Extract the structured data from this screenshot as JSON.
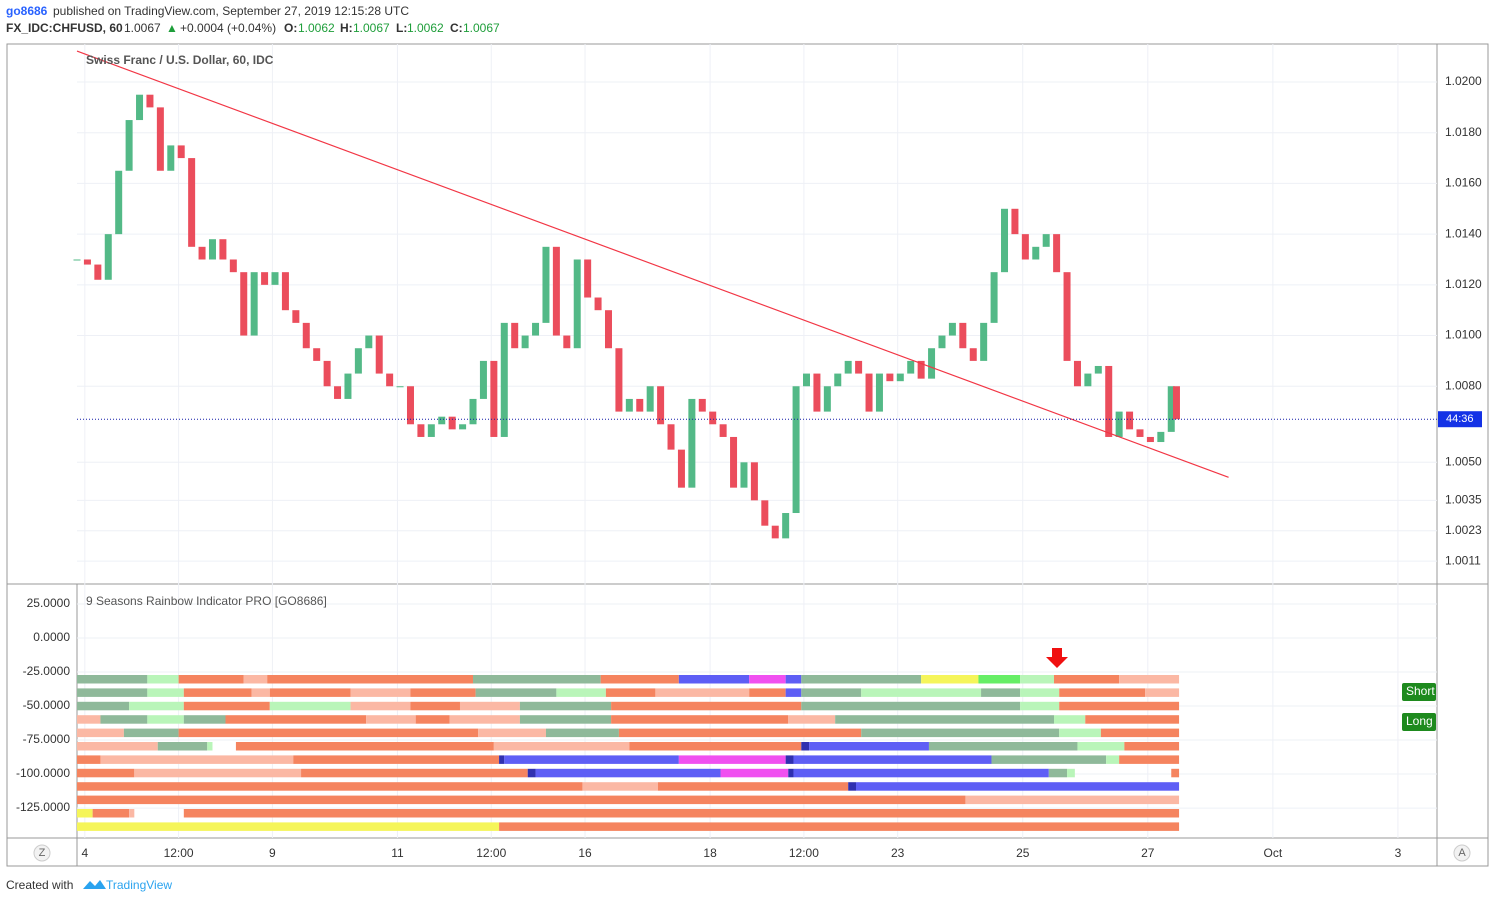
{
  "header": {
    "author": "go8686",
    "published": "published on TradingView.com, September 27, 2019 12:15:28 UTC",
    "symbol": "FX_IDC:CHFUSD, 60",
    "last": "1.0067",
    "change": "+0.0004 (+0.04%)",
    "o_label": "O:",
    "o": "1.0062",
    "h_label": "H:",
    "h": "1.0067",
    "l_label": "L:",
    "l": "1.0062",
    "c_label": "C:",
    "c": "1.0067"
  },
  "countdown": "44:36",
  "scale_buttons": [
    "Z",
    "A"
  ],
  "footer": {
    "created": "Created with",
    "brand": "TradingView"
  },
  "chart_data": [
    {
      "type": "candlestick",
      "title": "Swiss Franc / U.S. Dollar, 60, IDC",
      "up_color": "#53b987",
      "down_color": "#eb4d5c",
      "grid": true,
      "xlim": [
        -3,
        519
      ],
      "xticks": [
        {
          "value": 0,
          "label": "4"
        },
        {
          "value": 36,
          "label": "12:00"
        },
        {
          "value": 72,
          "label": "9"
        },
        {
          "value": 120,
          "label": "11"
        },
        {
          "value": 156,
          "label": "12:00"
        },
        {
          "value": 192,
          "label": "16"
        },
        {
          "value": 240,
          "label": "18"
        },
        {
          "value": 276,
          "label": "12:00"
        },
        {
          "value": 312,
          "label": "23"
        },
        {
          "value": 360,
          "label": "25"
        },
        {
          "value": 408,
          "label": "27"
        },
        {
          "value": 456,
          "label": "Oct"
        },
        {
          "value": 504,
          "label": "3"
        }
      ],
      "ylim": [
        1.0002,
        1.0215
      ],
      "yticks": [
        {
          "value": 1.02,
          "label": "1.0200"
        },
        {
          "value": 1.018,
          "label": "1.0180"
        },
        {
          "value": 1.016,
          "label": "1.0160"
        },
        {
          "value": 1.014,
          "label": "1.0140"
        },
        {
          "value": 1.012,
          "label": "1.0120"
        },
        {
          "value": 1.01,
          "label": "1.0100"
        },
        {
          "value": 1.008,
          "label": "1.0080"
        },
        {
          "value": 1.005,
          "label": "1.0050"
        },
        {
          "value": 1.0035,
          "label": "1.0035"
        },
        {
          "value": 1.0023,
          "label": "1.0023"
        },
        {
          "value": 1.0011,
          "label": "1.0011"
        }
      ],
      "x": [
        -3,
        1,
        5,
        9,
        13,
        17,
        21,
        25,
        29,
        33,
        37,
        41,
        45,
        49,
        53,
        57,
        61,
        65,
        69,
        73,
        77,
        81,
        85,
        89,
        93,
        97,
        101,
        105,
        109,
        113,
        117,
        121,
        125,
        129,
        133,
        137,
        141,
        145,
        149,
        153,
        157,
        161,
        165,
        169,
        173,
        177,
        181,
        185,
        189,
        193,
        197,
        201,
        205,
        209,
        213,
        217,
        221,
        225,
        229,
        233,
        237,
        241,
        245,
        249,
        253,
        257,
        261,
        265,
        269,
        273,
        277,
        281,
        285,
        289,
        293,
        297,
        301,
        305,
        309,
        313,
        317,
        321,
        325,
        329,
        333,
        337,
        341,
        345,
        349,
        353,
        357,
        361,
        365,
        369,
        373,
        377,
        381,
        385,
        389,
        393,
        397,
        401,
        405,
        409,
        413,
        417,
        419
      ],
      "close": [
        1.013,
        1.0128,
        1.0122,
        1.014,
        1.0165,
        1.0185,
        1.0195,
        1.019,
        1.0165,
        1.0175,
        1.017,
        1.0135,
        1.013,
        1.0138,
        1.013,
        1.0125,
        1.01,
        1.0125,
        1.012,
        1.0125,
        1.011,
        1.0105,
        1.0095,
        1.009,
        1.008,
        1.0075,
        1.0085,
        1.0095,
        1.01,
        1.0085,
        1.008,
        1.008,
        1.0065,
        1.006,
        1.0065,
        1.0068,
        1.0063,
        1.0065,
        1.0075,
        1.009,
        1.006,
        1.0105,
        1.0095,
        1.01,
        1.0105,
        1.0135,
        1.01,
        1.0095,
        1.013,
        1.0115,
        1.011,
        1.0095,
        1.007,
        1.0075,
        1.007,
        1.008,
        1.0065,
        1.0055,
        1.004,
        1.0075,
        1.007,
        1.0065,
        1.006,
        1.004,
        1.005,
        1.0035,
        1.0025,
        1.002,
        1.003,
        1.008,
        1.0085,
        1.007,
        1.008,
        1.0085,
        1.009,
        1.0085,
        1.007,
        1.0085,
        1.0082,
        1.0085,
        1.009,
        1.0083,
        1.0095,
        1.01,
        1.0105,
        1.0095,
        1.009,
        1.0105,
        1.0125,
        1.015,
        1.014,
        1.013,
        1.0135,
        1.014,
        1.0125,
        1.009,
        1.008,
        1.0085,
        1.0088,
        1.006,
        1.007,
        1.0063,
        1.006,
        1.0058,
        1.0062,
        1.008,
        1.0067
      ],
      "trendline": {
        "x": [
          -3,
          439
        ],
        "y": [
          1.02122,
          1.00441
        ],
        "color": "#f23645"
      },
      "last_line_color": "#131ca8"
    },
    {
      "type": "rainbow",
      "title": "9 Seasons Rainbow Indicator PRO [GO8686]",
      "ylim": [
        -147,
        39.7
      ],
      "yticks": [
        {
          "value": 25,
          "label": "25.0000"
        },
        {
          "value": 0,
          "label": "0.0000"
        },
        {
          "value": -25,
          "label": "-25.0000"
        },
        {
          "value": -50,
          "label": "-50.0000"
        },
        {
          "value": -75,
          "label": "-75.0000"
        },
        {
          "value": -100,
          "label": "-100.0000"
        },
        {
          "value": -125,
          "label": "-125.0000"
        }
      ],
      "signals": [
        "Short",
        "Long"
      ],
      "signal_color": "#1e8a1e",
      "rows": [
        [
          [
            -3,
            24,
            "#8fb99a"
          ],
          [
            24,
            36,
            "#b9f5b9"
          ],
          [
            36,
            61,
            "#f5845f"
          ],
          [
            61,
            70,
            "#fbb8a4"
          ],
          [
            70,
            149,
            "#f5845f"
          ],
          [
            149,
            198,
            "#8fb99a"
          ],
          [
            198,
            228,
            "#f5845f"
          ],
          [
            228,
            255,
            "#5e5ef5"
          ],
          [
            255,
            269,
            "#f050f0"
          ],
          [
            269,
            275,
            "#5e5ef5"
          ],
          [
            275,
            321,
            "#8fb99a"
          ],
          [
            321,
            343,
            "#f5f55a"
          ],
          [
            343,
            359,
            "#66ee66"
          ],
          [
            359,
            372,
            "#b9f5b9"
          ],
          [
            372,
            397,
            "#f5845f"
          ],
          [
            397,
            420,
            "#fbb8a4"
          ]
        ],
        [
          [
            -3,
            24,
            "#8fb99a"
          ],
          [
            24,
            38,
            "#b9f5b9"
          ],
          [
            38,
            64,
            "#f5845f"
          ],
          [
            64,
            71,
            "#fbb8a4"
          ],
          [
            71,
            102,
            "#f5845f"
          ],
          [
            102,
            125,
            "#fbb8a4"
          ],
          [
            125,
            150,
            "#f5845f"
          ],
          [
            150,
            181,
            "#8fb99a"
          ],
          [
            181,
            200,
            "#b9f5b9"
          ],
          [
            200,
            219,
            "#f5845f"
          ],
          [
            219,
            255,
            "#fbb8a4"
          ],
          [
            255,
            269,
            "#f5845f"
          ],
          [
            269,
            275,
            "#5e5ef5"
          ],
          [
            275,
            298,
            "#8fb99a"
          ],
          [
            298,
            344,
            "#b9f5b9"
          ],
          [
            344,
            359,
            "#8fb99a"
          ],
          [
            359,
            374,
            "#b9f5b9"
          ],
          [
            374,
            407,
            "#f5845f"
          ],
          [
            407,
            420,
            "#fbb8a4"
          ]
        ],
        [
          [
            -3,
            17,
            "#8fb99a"
          ],
          [
            17,
            38,
            "#b9f5b9"
          ],
          [
            38,
            71,
            "#f5845f"
          ],
          [
            71,
            102,
            "#b9f5b9"
          ],
          [
            102,
            125,
            "#fbb8a4"
          ],
          [
            125,
            144,
            "#f5845f"
          ],
          [
            144,
            167,
            "#fbb8a4"
          ],
          [
            167,
            202,
            "#8fb99a"
          ],
          [
            202,
            275,
            "#f5845f"
          ],
          [
            275,
            359,
            "#8fb99a"
          ],
          [
            359,
            374,
            "#b9f5b9"
          ],
          [
            374,
            420,
            "#f5845f"
          ]
        ],
        [
          [
            -3,
            6,
            "#fbb8a4"
          ],
          [
            6,
            24,
            "#8fb99a"
          ],
          [
            24,
            38,
            "#b9f5b9"
          ],
          [
            38,
            54,
            "#8fb99a"
          ],
          [
            54,
            108,
            "#f5845f"
          ],
          [
            108,
            127,
            "#fbb8a4"
          ],
          [
            127,
            140,
            "#f5845f"
          ],
          [
            140,
            167,
            "#fbb8a4"
          ],
          [
            167,
            202,
            "#8fb99a"
          ],
          [
            202,
            270,
            "#f5845f"
          ],
          [
            270,
            288,
            "#fbb8a4"
          ],
          [
            288,
            372,
            "#8fb99a"
          ],
          [
            372,
            384,
            "#b9f5b9"
          ],
          [
            384,
            420,
            "#f5845f"
          ]
        ],
        [
          [
            -3,
            15,
            "#fbb8a4"
          ],
          [
            15,
            36,
            "#8fb99a"
          ],
          [
            36,
            151,
            "#f5845f"
          ],
          [
            151,
            177,
            "#fbb8a4"
          ],
          [
            177,
            205,
            "#8fb99a"
          ],
          [
            205,
            298,
            "#f5845f"
          ],
          [
            298,
            374,
            "#8fb99a"
          ],
          [
            374,
            390,
            "#b9f5b9"
          ],
          [
            390,
            420,
            "#f5845f"
          ]
        ],
        [
          [
            -3,
            28,
            "#fbb8a4"
          ],
          [
            28,
            47,
            "#8fb99a"
          ],
          [
            47,
            49,
            "#b9f5b9"
          ],
          [
            58,
            157,
            "#f5845f"
          ],
          [
            157,
            209,
            "#fbb8a4"
          ],
          [
            209,
            275,
            "#f5845f"
          ],
          [
            275,
            278,
            "#3030b0"
          ],
          [
            278,
            324,
            "#5e5ef5"
          ],
          [
            324,
            381,
            "#8fb99a"
          ],
          [
            381,
            399,
            "#b9f5b9"
          ],
          [
            399,
            420,
            "#f5845f"
          ]
        ],
        [
          [
            -3,
            6,
            "#f5845f"
          ],
          [
            6,
            80,
            "#fbb8a4"
          ],
          [
            80,
            159,
            "#f5845f"
          ],
          [
            159,
            161,
            "#3030b0"
          ],
          [
            161,
            228,
            "#5e5ef5"
          ],
          [
            228,
            269,
            "#f050f0"
          ],
          [
            269,
            272,
            "#3030b0"
          ],
          [
            272,
            348,
            "#5e5ef5"
          ],
          [
            348,
            392,
            "#8fb99a"
          ],
          [
            392,
            397,
            "#b9f5b9"
          ],
          [
            397,
            420,
            "#f5845f"
          ]
        ],
        [
          [
            -3,
            19,
            "#f5845f"
          ],
          [
            19,
            83,
            "#fbb8a4"
          ],
          [
            83,
            170,
            "#f5845f"
          ],
          [
            170,
            173,
            "#3030b0"
          ],
          [
            173,
            244,
            "#5e5ef5"
          ],
          [
            244,
            270,
            "#f050f0"
          ],
          [
            270,
            272,
            "#3030b0"
          ],
          [
            272,
            370,
            "#5e5ef5"
          ],
          [
            370,
            377,
            "#8fb99a"
          ],
          [
            377,
            380,
            "#b9f5b9"
          ],
          [
            417,
            420,
            "#f5845f"
          ]
        ],
        [
          [
            -3,
            191,
            "#f5845f"
          ],
          [
            191,
            220,
            "#fbb8a4"
          ],
          [
            220,
            293,
            "#f5845f"
          ],
          [
            293,
            296,
            "#3030b0"
          ],
          [
            296,
            420,
            "#5e5ef5"
          ]
        ],
        [
          [
            -3,
            338,
            "#f5845f"
          ],
          [
            338,
            420,
            "#fbb8a4"
          ]
        ],
        [
          [
            -3,
            3,
            "#f5f55a"
          ],
          [
            3,
            17,
            "#f5845f"
          ],
          [
            17,
            19,
            "#fbb8a4"
          ],
          [
            38,
            420,
            "#f5845f"
          ]
        ],
        [
          [
            -3,
            159,
            "#f5f55a"
          ],
          [
            159,
            420,
            "#f5845f"
          ]
        ]
      ]
    }
  ]
}
